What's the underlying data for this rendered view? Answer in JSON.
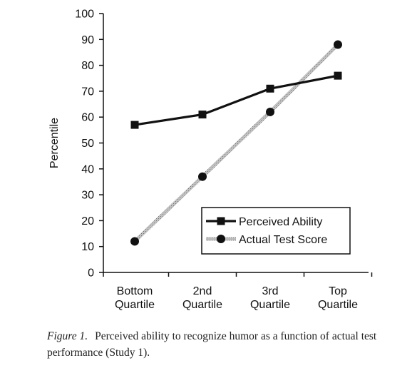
{
  "chart_data": {
    "type": "line",
    "categories": [
      "Bottom Quartile",
      "2nd Quartile",
      "3rd Quartile",
      "Top Quartile"
    ],
    "category_lines": [
      [
        "Bottom",
        "Quartile"
      ],
      [
        "2nd",
        "Quartile"
      ],
      [
        "3rd",
        "Quartile"
      ],
      [
        "Top",
        "Quartile"
      ]
    ],
    "ylabel": "Percentile",
    "xlabel": "",
    "title": "",
    "ylim": [
      0,
      100
    ],
    "yticks": [
      0,
      10,
      20,
      30,
      40,
      50,
      60,
      70,
      80,
      90,
      100
    ],
    "grid": false,
    "legend_position": "bottom-right",
    "series": [
      {
        "name": "Perceived Ability",
        "marker": "square",
        "line_style": "solid",
        "color": "#111111",
        "values": [
          57,
          61,
          71,
          76
        ]
      },
      {
        "name": "Actual Test Score",
        "marker": "circle",
        "line_style": "stippled",
        "color": "#9a9a9a",
        "values": [
          12,
          37,
          62,
          88
        ]
      }
    ]
  },
  "caption": {
    "label": "Figure 1.",
    "text": "Perceived ability to recognize humor as a function of actual test performance (Study 1)."
  }
}
